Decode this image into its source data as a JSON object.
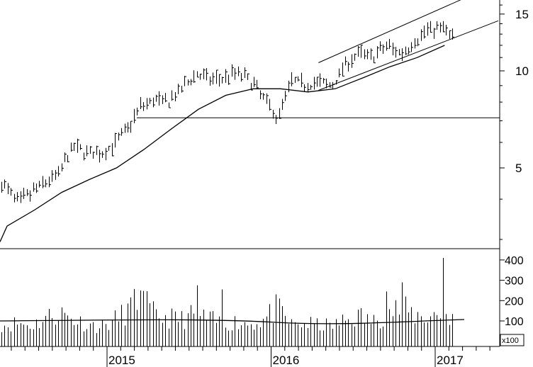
{
  "chart_data": [
    {
      "type": "line",
      "subtype": "ohlc-bars",
      "scale": "log",
      "yaxis_position": "right",
      "y_ticks": [
        5,
        10,
        15
      ],
      "ylim": [
        2.4,
        18.7
      ],
      "x_ticks": [
        "2015",
        "2016",
        "2017"
      ],
      "x_range": [
        "2014-04",
        "2017-06"
      ],
      "series": [
        {
          "style": "weekly-bars",
          "x": [
            "2014-04",
            "2014-05",
            "2014-06",
            "2014-07",
            "2014-08",
            "2014-09",
            "2014-10",
            "2014-11",
            "2014-12",
            "2015-01",
            "2015-02",
            "2015-03",
            "2015-04",
            "2015-05",
            "2015-06",
            "2015-07",
            "2015-08",
            "2015-09",
            "2015-10",
            "2015-11",
            "2015-12",
            "2016-01",
            "2016-02",
            "2016-03",
            "2016-04",
            "2016-05",
            "2016-06",
            "2016-07",
            "2016-08",
            "2016-09",
            "2016-10",
            "2016-11",
            "2016-12",
            "2017-01",
            "2017-02"
          ],
          "values": [
            4.6,
            4.4,
            3.9,
            4.2,
            4.5,
            4.8,
            5.8,
            5.6,
            5.5,
            5.9,
            6.6,
            7.8,
            8.1,
            8.0,
            8.8,
            9.8,
            9.4,
            9.5,
            9.9,
            9.3,
            8.2,
            7.1,
            9.3,
            9.1,
            9.2,
            9.0,
            10.6,
            11.3,
            11.1,
            12.0,
            11.3,
            12.3,
            13.5,
            13.6,
            12.5
          ]
        },
        {
          "style": "moving-average",
          "x": [
            "2014-04",
            "2014-06",
            "2014-08",
            "2014-10",
            "2014-12",
            "2015-02",
            "2015-04",
            "2015-06",
            "2015-08",
            "2015-10",
            "2015-12",
            "2016-02",
            "2016-04",
            "2016-06",
            "2016-08",
            "2016-10",
            "2016-12",
            "2017-02"
          ],
          "values": [
            2.95,
            3.3,
            3.7,
            4.2,
            4.6,
            5.0,
            5.7,
            6.6,
            7.6,
            8.4,
            8.8,
            8.8,
            8.6,
            8.8,
            9.5,
            10.3,
            11.0,
            12.0
          ]
        }
      ],
      "annotations": [
        {
          "type": "horizontal-line",
          "value": 7.15
        },
        {
          "type": "channel-upper",
          "points": [
            [
              "2016-04-15",
              10.6
            ],
            [
              "2017-05-20",
              18.7
            ]
          ]
        },
        {
          "type": "channel-lower",
          "points": [
            [
              "2016-04-15",
              8.7
            ],
            [
              "2017-05-20",
              14.3
            ]
          ]
        }
      ]
    },
    {
      "type": "bar",
      "y_ticks": [
        100,
        200,
        300,
        400
      ],
      "ylim": [
        0,
        430
      ],
      "y_unit_label": "x100",
      "x": [
        "2014-04",
        "2014-05",
        "2014-06",
        "2014-07",
        "2014-08",
        "2014-09",
        "2014-10",
        "2014-11",
        "2014-12",
        "2015-01",
        "2015-02",
        "2015-03",
        "2015-04",
        "2015-05",
        "2015-06",
        "2015-07",
        "2015-08",
        "2015-09",
        "2015-10",
        "2015-11",
        "2015-12",
        "2016-01",
        "2016-02",
        "2016-03",
        "2016-04",
        "2016-05",
        "2016-06",
        "2016-07",
        "2016-08",
        "2016-09",
        "2016-10",
        "2016-11",
        "2016-12",
        "2017-01",
        "2017-02"
      ],
      "values": [
        110,
        85,
        95,
        80,
        120,
        150,
        115,
        90,
        75,
        105,
        160,
        220,
        130,
        120,
        115,
        140,
        110,
        95,
        100,
        90,
        110,
        175,
        85,
        90,
        85,
        80,
        110,
        130,
        100,
        155,
        170,
        135,
        125,
        150,
        120
      ],
      "peaks": [
        {
          "x": "2015-03",
          "value": 250
        },
        {
          "x": "2015-07",
          "value": 275
        },
        {
          "x": "2015-09",
          "value": 255
        },
        {
          "x": "2016-01",
          "value": 210
        },
        {
          "x": "2016-09",
          "value": 245
        },
        {
          "x": "2016-10",
          "value": 290
        },
        {
          "x": "2017-01",
          "value": 410
        }
      ],
      "average_line": 100
    }
  ],
  "labels": {
    "price_ticks": [
      "15",
      "10",
      "5"
    ],
    "volume_ticks": [
      "400",
      "300",
      "200",
      "100"
    ],
    "volume_unit": "x100",
    "year_ticks": [
      "2015",
      "2016",
      "2017"
    ]
  }
}
